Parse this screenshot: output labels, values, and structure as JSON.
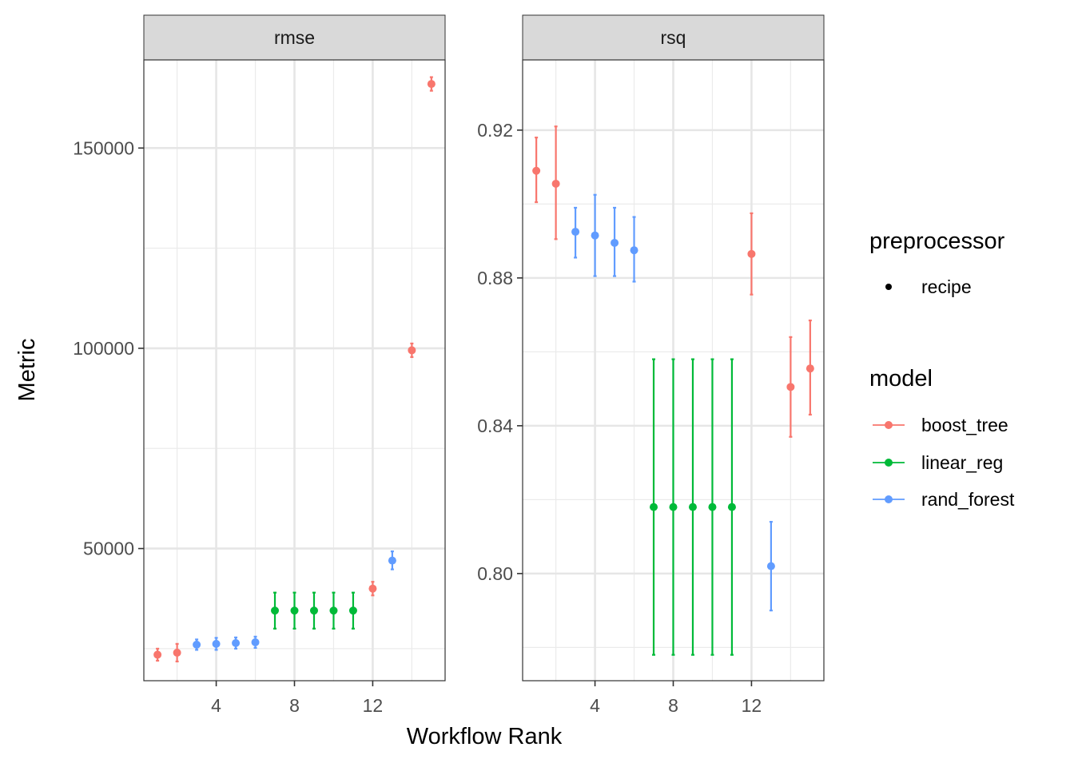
{
  "chart_data": {
    "type": "scatter",
    "xlabel": "Workflow Rank",
    "ylabel": "Metric",
    "x_ticks": [
      4,
      8,
      12
    ],
    "x_range": [
      0.3,
      15.7
    ],
    "legends": {
      "preprocessor": {
        "title": "preprocessor",
        "entries": [
          {
            "label": "recipe"
          }
        ]
      },
      "model": {
        "title": "model",
        "entries": [
          {
            "label": "boost_tree",
            "color": "#F8766D"
          },
          {
            "label": "linear_reg",
            "color": "#00BA38"
          },
          {
            "label": "rand_forest",
            "color": "#619CFF"
          }
        ]
      }
    },
    "panels": [
      {
        "strip": "rmse",
        "ylim": [
          17000,
          172000
        ],
        "y_ticks": [
          50000,
          100000,
          150000
        ],
        "y_tick_labels": [
          "50000",
          "100000",
          "150000"
        ],
        "points": [
          {
            "rank": 1,
            "model": "boost_tree",
            "mean": 23500,
            "lower": 22000,
            "upper": 25000
          },
          {
            "rank": 2,
            "model": "boost_tree",
            "mean": 24000,
            "lower": 21800,
            "upper": 26200
          },
          {
            "rank": 3,
            "model": "rand_forest",
            "mean": 26000,
            "lower": 24700,
            "upper": 27300
          },
          {
            "rank": 4,
            "model": "rand_forest",
            "mean": 26200,
            "lower": 24700,
            "upper": 27700
          },
          {
            "rank": 5,
            "model": "rand_forest",
            "mean": 26400,
            "lower": 25000,
            "upper": 27800
          },
          {
            "rank": 6,
            "model": "rand_forest",
            "mean": 26600,
            "lower": 25200,
            "upper": 28000
          },
          {
            "rank": 7,
            "model": "linear_reg",
            "mean": 34500,
            "lower": 30000,
            "upper": 39000
          },
          {
            "rank": 8,
            "model": "linear_reg",
            "mean": 34500,
            "lower": 30000,
            "upper": 39000
          },
          {
            "rank": 9,
            "model": "linear_reg",
            "mean": 34500,
            "lower": 30000,
            "upper": 39000
          },
          {
            "rank": 10,
            "model": "linear_reg",
            "mean": 34500,
            "lower": 30000,
            "upper": 39000
          },
          {
            "rank": 11,
            "model": "linear_reg",
            "mean": 34500,
            "lower": 30000,
            "upper": 39000
          },
          {
            "rank": 12,
            "model": "boost_tree",
            "mean": 40000,
            "lower": 38300,
            "upper": 41700
          },
          {
            "rank": 13,
            "model": "rand_forest",
            "mean": 47000,
            "lower": 44800,
            "upper": 49300
          },
          {
            "rank": 14,
            "model": "boost_tree",
            "mean": 99500,
            "lower": 97800,
            "upper": 101200
          },
          {
            "rank": 15,
            "model": "boost_tree",
            "mean": 166000,
            "lower": 164300,
            "upper": 167700
          }
        ]
      },
      {
        "strip": "rsq",
        "ylim": [
          0.771,
          0.939
        ],
        "y_ticks": [
          0.8,
          0.84,
          0.88,
          0.92
        ],
        "y_tick_labels": [
          "0.80",
          "0.84",
          "0.88",
          "0.92"
        ],
        "points": [
          {
            "rank": 1,
            "model": "boost_tree",
            "mean": 0.909,
            "lower": 0.9005,
            "upper": 0.918
          },
          {
            "rank": 2,
            "model": "boost_tree",
            "mean": 0.9055,
            "lower": 0.8905,
            "upper": 0.921
          },
          {
            "rank": 3,
            "model": "rand_forest",
            "mean": 0.8925,
            "lower": 0.8855,
            "upper": 0.899
          },
          {
            "rank": 4,
            "model": "rand_forest",
            "mean": 0.8915,
            "lower": 0.8805,
            "upper": 0.9025
          },
          {
            "rank": 5,
            "model": "rand_forest",
            "mean": 0.8895,
            "lower": 0.8805,
            "upper": 0.899
          },
          {
            "rank": 6,
            "model": "rand_forest",
            "mean": 0.8875,
            "lower": 0.879,
            "upper": 0.8965
          },
          {
            "rank": 7,
            "model": "linear_reg",
            "mean": 0.818,
            "lower": 0.778,
            "upper": 0.858
          },
          {
            "rank": 8,
            "model": "linear_reg",
            "mean": 0.818,
            "lower": 0.778,
            "upper": 0.858
          },
          {
            "rank": 9,
            "model": "linear_reg",
            "mean": 0.818,
            "lower": 0.778,
            "upper": 0.858
          },
          {
            "rank": 10,
            "model": "linear_reg",
            "mean": 0.818,
            "lower": 0.778,
            "upper": 0.858
          },
          {
            "rank": 11,
            "model": "linear_reg",
            "mean": 0.818,
            "lower": 0.778,
            "upper": 0.858
          },
          {
            "rank": 12,
            "model": "boost_tree",
            "mean": 0.8865,
            "lower": 0.8755,
            "upper": 0.8975
          },
          {
            "rank": 13,
            "model": "rand_forest",
            "mean": 0.802,
            "lower": 0.79,
            "upper": 0.814
          },
          {
            "rank": 14,
            "model": "boost_tree",
            "mean": 0.8505,
            "lower": 0.837,
            "upper": 0.864
          },
          {
            "rank": 15,
            "model": "boost_tree",
            "mean": 0.8555,
            "lower": 0.843,
            "upper": 0.8685
          }
        ]
      }
    ]
  }
}
